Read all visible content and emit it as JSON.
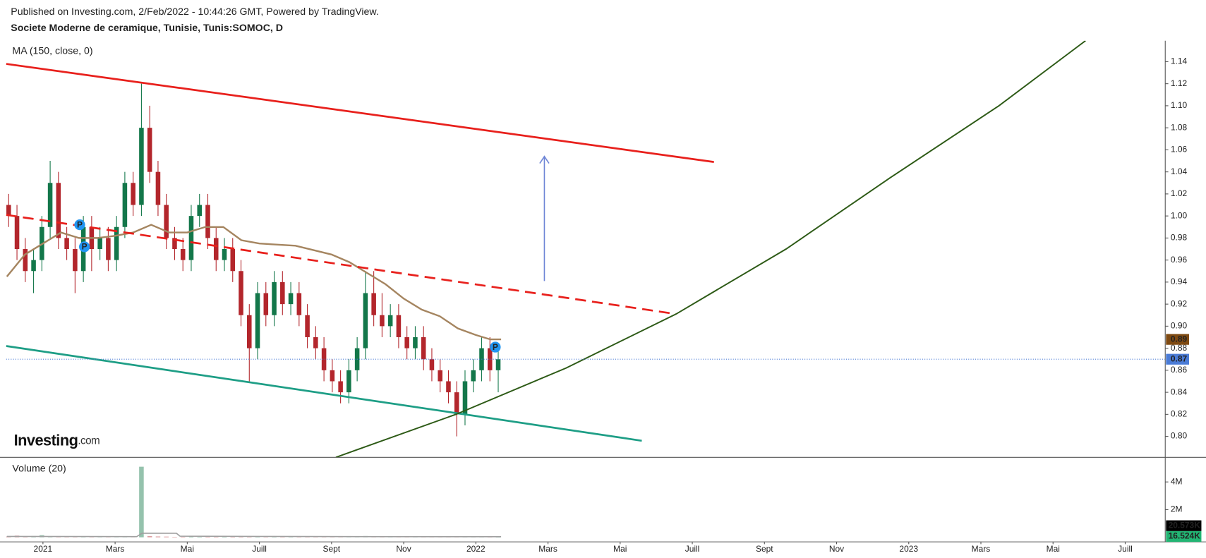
{
  "chart_data": {
    "type": "candlestick",
    "header": "Published on Investing.com, 2/Feb/2022 - 10:44:26 GMT, Powered by TradingView.",
    "title": "Societe Moderne de ceramique, Tunisie, Tunis:SOMOC, D",
    "indicator_label": "MA (150, close, 0)",
    "logo": {
      "brand": "Investing",
      "suffix": ".com"
    },
    "up_color": "#13774a",
    "down_color": "#b3262c",
    "xlim": [
      -1.02,
      31.11
    ],
    "xticks": [
      {
        "value": 0,
        "label": "2021"
      },
      {
        "value": 2,
        "label": "Mars"
      },
      {
        "value": 4,
        "label": "Mai"
      },
      {
        "value": 6,
        "label": "Juill"
      },
      {
        "value": 8,
        "label": "Sept"
      },
      {
        "value": 10,
        "label": "Nov"
      },
      {
        "value": 12,
        "label": "2022"
      },
      {
        "value": 14,
        "label": "Mars"
      },
      {
        "value": 16,
        "label": "Mai"
      },
      {
        "value": 18,
        "label": "Juill"
      },
      {
        "value": 20,
        "label": "Sept"
      },
      {
        "value": 22,
        "label": "Nov"
      },
      {
        "value": 24,
        "label": "2023"
      },
      {
        "value": 26,
        "label": "Mars"
      },
      {
        "value": 28,
        "label": "Mai"
      },
      {
        "value": 30,
        "label": "Juill"
      }
    ],
    "ylim": [
      0.781,
      1.159
    ],
    "yticks": [
      {
        "value": 0.8,
        "label": "0.80"
      },
      0.82,
      0.84,
      0.86,
      0.88,
      {
        "value": 0.9,
        "label": "0.90"
      },
      0.92,
      0.94,
      0.96,
      0.98,
      {
        "value": 1.0,
        "label": "1.00"
      },
      1.02,
      1.04,
      1.06,
      1.08,
      {
        "value": 1.1,
        "label": "1.10"
      },
      1.12,
      1.14
    ],
    "x": [
      -0.95,
      -0.72,
      -0.49,
      -0.26,
      -0.03,
      0.2,
      0.43,
      0.66,
      0.89,
      1.12,
      1.35,
      1.58,
      1.81,
      2.04,
      2.27,
      2.5,
      2.73,
      2.96,
      3.19,
      3.42,
      3.65,
      3.88,
      4.11,
      4.34,
      4.57,
      4.8,
      5.03,
      5.26,
      5.49,
      5.72,
      5.95,
      6.18,
      6.41,
      6.64,
      6.87,
      7.1,
      7.33,
      7.56,
      7.79,
      8.02,
      8.25,
      8.48,
      8.71,
      8.94,
      9.17,
      9.4,
      9.63,
      9.86,
      10.09,
      10.32,
      10.55,
      10.78,
      11.01,
      11.24,
      11.47,
      11.7,
      11.93,
      12.16,
      12.39,
      12.62
    ],
    "open": [
      1.01,
      1.0,
      0.97,
      0.95,
      0.96,
      0.99,
      1.03,
      0.98,
      0.97,
      0.95,
      0.99,
      0.97,
      0.98,
      0.96,
      0.99,
      1.03,
      1.01,
      1.08,
      1.04,
      1.01,
      0.98,
      0.97,
      0.96,
      1.0,
      1.01,
      0.98,
      0.96,
      0.97,
      0.95,
      0.91,
      0.88,
      0.93,
      0.91,
      0.94,
      0.92,
      0.93,
      0.91,
      0.89,
      0.88,
      0.86,
      0.85,
      0.84,
      0.86,
      0.88,
      0.93,
      0.91,
      0.9,
      0.91,
      0.89,
      0.88,
      0.89,
      0.87,
      0.86,
      0.85,
      0.84,
      0.82,
      0.85,
      0.86,
      0.88,
      0.86
    ],
    "high": [
      1.02,
      1.01,
      0.98,
      0.97,
      1.0,
      1.05,
      1.04,
      0.99,
      0.98,
      1.0,
      1.0,
      0.99,
      0.99,
      1.0,
      1.04,
      1.04,
      1.12,
      1.1,
      1.05,
      1.02,
      0.99,
      0.98,
      1.01,
      1.02,
      1.02,
      0.99,
      0.98,
      0.98,
      0.96,
      0.92,
      0.94,
      0.94,
      0.95,
      0.95,
      0.94,
      0.94,
      0.92,
      0.9,
      0.89,
      0.87,
      0.86,
      0.87,
      0.89,
      0.95,
      0.95,
      0.93,
      0.92,
      0.92,
      0.9,
      0.9,
      0.9,
      0.88,
      0.87,
      0.86,
      0.85,
      0.86,
      0.87,
      0.89,
      0.89,
      0.88
    ],
    "low": [
      0.99,
      0.96,
      0.94,
      0.93,
      0.95,
      0.98,
      0.97,
      0.96,
      0.93,
      0.94,
      0.95,
      0.96,
      0.95,
      0.95,
      0.98,
      1.0,
      1.0,
      1.03,
      1.0,
      0.97,
      0.96,
      0.95,
      0.95,
      0.99,
      0.97,
      0.95,
      0.95,
      0.94,
      0.9,
      0.85,
      0.87,
      0.9,
      0.9,
      0.91,
      0.91,
      0.9,
      0.88,
      0.87,
      0.85,
      0.84,
      0.83,
      0.83,
      0.85,
      0.87,
      0.9,
      0.89,
      0.89,
      0.88,
      0.87,
      0.87,
      0.86,
      0.85,
      0.84,
      0.83,
      0.8,
      0.81,
      0.84,
      0.85,
      0.85,
      0.84
    ],
    "close": [
      1.0,
      0.97,
      0.95,
      0.96,
      0.99,
      1.03,
      0.98,
      0.97,
      0.95,
      0.99,
      0.97,
      0.98,
      0.96,
      0.99,
      1.03,
      1.01,
      1.08,
      1.04,
      1.01,
      0.98,
      0.97,
      0.96,
      1.0,
      1.01,
      0.98,
      0.96,
      0.97,
      0.95,
      0.91,
      0.88,
      0.93,
      0.91,
      0.94,
      0.92,
      0.93,
      0.91,
      0.89,
      0.88,
      0.86,
      0.85,
      0.84,
      0.86,
      0.88,
      0.93,
      0.91,
      0.9,
      0.91,
      0.89,
      0.88,
      0.89,
      0.87,
      0.86,
      0.85,
      0.84,
      0.82,
      0.85,
      0.86,
      0.88,
      0.86,
      0.87
    ],
    "ma": {
      "color": "#a58560",
      "x": [
        -1,
        -0.5,
        0,
        0.5,
        1,
        1.5,
        2,
        2.5,
        3,
        3.5,
        4,
        4.5,
        5,
        5.5,
        6,
        7,
        8,
        8.5,
        9,
        9.5,
        10,
        10.5,
        11,
        11.5,
        12,
        12.4,
        12.7
      ],
      "values": [
        0.945,
        0.965,
        0.975,
        0.985,
        0.98,
        0.98,
        0.982,
        0.985,
        0.992,
        0.985,
        0.985,
        0.99,
        0.99,
        0.978,
        0.975,
        0.973,
        0.965,
        0.958,
        0.948,
        0.938,
        0.925,
        0.915,
        0.909,
        0.898,
        0.892,
        0.888,
        0.888
      ]
    },
    "price_labels": [
      {
        "value": 0.888,
        "label": "0.89",
        "color": "#7f4a12"
      },
      {
        "value": 0.87,
        "color": "#4a7bd6"
      }
    ],
    "markers": [
      {
        "x": 1.02,
        "y": 0.992,
        "label": "P"
      },
      {
        "x": 1.15,
        "y": 0.972,
        "label": "P"
      },
      {
        "x": 12.54,
        "y": 0.881,
        "label": "P"
      }
    ],
    "drawings": [
      {
        "color": "#e8201c",
        "width": 2.5,
        "x": [
          -1.02,
          18.6
        ],
        "y": [
          1.138,
          1.049
        ]
      },
      {
        "color": "#e8201c",
        "width": 2.5,
        "dash": true,
        "x": [
          -1.02,
          17.55
        ],
        "y": [
          1.001,
          0.911
        ]
      },
      {
        "color": "#1e9e86",
        "width": 2.5,
        "x": [
          -1.02,
          16.6
        ],
        "y": [
          0.882,
          0.796
        ]
      },
      {
        "color": "#2d5a16",
        "width": 1.8,
        "x": [
          8.12,
          11.45,
          14.5,
          17.55,
          20.6,
          23.5,
          26.5,
          28.9
        ],
        "y": [
          0.781,
          0.82,
          0.862,
          0.911,
          0.97,
          1.035,
          1.1,
          1.159
        ]
      },
      {
        "color": "#6f86d6",
        "width": 1.5,
        "arrow": true,
        "x": [
          13.9,
          13.9
        ],
        "y": [
          0.941,
          1.054
        ]
      }
    ],
    "volume": {
      "label": "Volume (20)",
      "ylim": [
        -330000,
        5780000
      ],
      "yticks": [
        {
          "value": 2000000,
          "label": "2M"
        },
        {
          "value": 4000000,
          "label": "4M"
        }
      ],
      "values": [
        60000,
        120000,
        40000,
        90000,
        150000,
        70000,
        50000,
        30000,
        80000,
        40000,
        60000,
        30000,
        45000,
        70000,
        40000,
        55000,
        5100000,
        90000,
        60000,
        50000,
        30000,
        40000,
        70000,
        35000,
        45000,
        60000,
        40000,
        35000,
        80000,
        50000,
        40000,
        30000,
        45000,
        60000,
        40000,
        35000,
        50000,
        40000,
        30000,
        45000,
        60000,
        30000,
        40000,
        90000,
        50000,
        35000,
        40000,
        30000,
        45000,
        35000,
        40000,
        30000,
        45000,
        50000,
        40000,
        35000,
        30000,
        45000,
        25000,
        20573
      ],
      "ma": {
        "color": "#a0a0a0",
        "x": [
          -1,
          2.6,
          2.75,
          3.7,
          3.8,
          6,
          12.7
        ],
        "values": [
          60000,
          50000,
          300000,
          290000,
          80000,
          60000,
          40000
        ]
      },
      "value_labels": [
        {
          "value": 20573,
          "label": "20.573K",
          "color": "#000000"
        },
        {
          "value": 16524,
          "label": "16.524K",
          "color": "#22b573"
        }
      ]
    }
  }
}
